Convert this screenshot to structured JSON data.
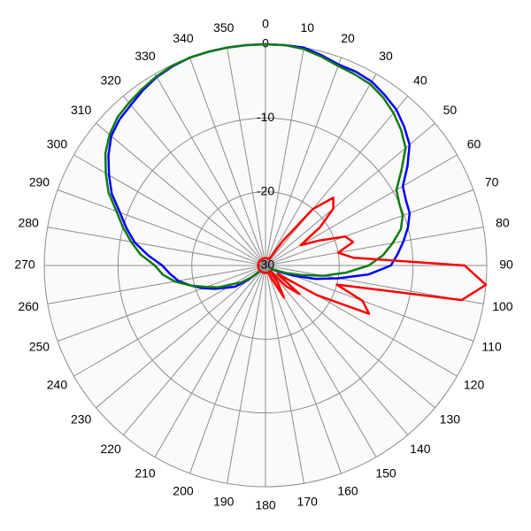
{
  "chart_data": {
    "type": "polar",
    "x": [
      0,
      5,
      10,
      15,
      20,
      25,
      30,
      35,
      40,
      45,
      50,
      55,
      60,
      65,
      70,
      75,
      80,
      85,
      90,
      95,
      100,
      105,
      110,
      115,
      120,
      125,
      130,
      135,
      140,
      145,
      150,
      155,
      160,
      165,
      170,
      175,
      180,
      185,
      190,
      195,
      200,
      205,
      210,
      215,
      220,
      225,
      230,
      235,
      240,
      245,
      250,
      255,
      260,
      265,
      270,
      275,
      280,
      285,
      290,
      295,
      300,
      305,
      310,
      315,
      320,
      325,
      330,
      335,
      340,
      345,
      350,
      355
    ],
    "series": [
      {
        "name": "blue",
        "color": "#0000ff",
        "values": [
          0,
          0,
          0,
          -0.5,
          -1,
          -1,
          -1.2,
          -1.8,
          -2.4,
          -3.4,
          -4.5,
          -6.5,
          -8.5,
          -9,
          -9.2,
          -10,
          -11,
          -12,
          -13,
          -16,
          -20,
          -23,
          -26,
          -28,
          -29,
          -29,
          -29,
          -29,
          -29,
          -29,
          -29,
          -29,
          -29,
          -29,
          -29,
          -29,
          -29,
          -29,
          -29,
          -29,
          -29,
          -29,
          -29,
          -29,
          -29,
          -29,
          -27,
          -25,
          -24,
          -22.5,
          -21,
          -19.5,
          -18,
          -17,
          -16,
          -14,
          -12,
          -10.5,
          -9,
          -7,
          -5.5,
          -4,
          -2.7,
          -2,
          -1.6,
          -1,
          -0.5,
          -0.2,
          0,
          0,
          0,
          0
        ]
      },
      {
        "name": "green",
        "color": "#127a12",
        "values": [
          0,
          0,
          -0.2,
          -0.7,
          -1.2,
          -1.4,
          -1.6,
          -2.2,
          -3,
          -4,
          -5.2,
          -7.5,
          -9.5,
          -10,
          -10.2,
          -11,
          -12.5,
          -14,
          -16,
          -19,
          -22,
          -25,
          -27,
          -28.5,
          -29,
          -29,
          -29,
          -29,
          -29,
          -29,
          -29,
          -29,
          -29,
          -29,
          -29,
          -29,
          -29,
          -29,
          -29,
          -29,
          -29,
          -29,
          -29,
          -29,
          -29,
          -29,
          -27.5,
          -26,
          -25,
          -23,
          -21.5,
          -19.5,
          -17.5,
          -16,
          -15,
          -13,
          -11.5,
          -10,
          -8.5,
          -6.5,
          -5,
          -3.5,
          -2.4,
          -1.6,
          -1.2,
          -0.8,
          -0.4,
          -0.1,
          0,
          0,
          0,
          0
        ]
      },
      {
        "name": "red",
        "color": "#ff0000",
        "values": [
          -29,
          -29,
          -29,
          -29,
          -29,
          -29,
          -29,
          -26,
          -20,
          -17,
          -18,
          -21,
          -24.5,
          -22,
          -18.5,
          -17.7,
          -20,
          -18,
          -3,
          0,
          -3,
          -20,
          -16,
          -14.5,
          -22,
          -28,
          -24,
          -26,
          -29,
          -27,
          -25,
          -28,
          -29,
          -29,
          -29,
          -29,
          -29,
          -29,
          -29,
          -29,
          -29,
          -29,
          -29,
          -29,
          -29,
          -29,
          -29,
          -29,
          -29,
          -29,
          -29,
          -29,
          -29,
          -29,
          -29,
          -29,
          -29,
          -29,
          -29,
          -29,
          -29,
          -29,
          -29,
          -29,
          -29,
          -29,
          -29,
          -29,
          -29,
          -29,
          -29,
          -29
        ]
      }
    ],
    "xticks": [
      0,
      10,
      20,
      30,
      40,
      50,
      60,
      70,
      80,
      90,
      100,
      110,
      120,
      130,
      140,
      150,
      160,
      170,
      180,
      190,
      200,
      210,
      220,
      230,
      240,
      250,
      260,
      270,
      280,
      290,
      300,
      310,
      320,
      330,
      340,
      350
    ],
    "ylim": [
      -30,
      0
    ],
    "yticks": [
      -30,
      -20,
      -10,
      0
    ],
    "grid": true
  }
}
